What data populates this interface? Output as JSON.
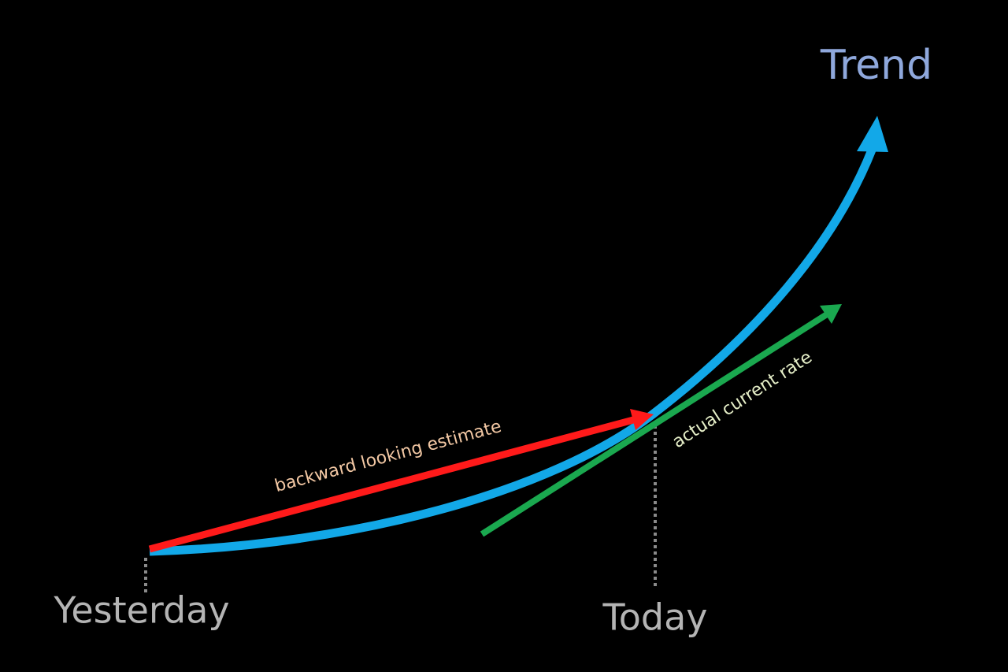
{
  "title": "Trend",
  "labels": {
    "backward": "backward looking estimate",
    "actual": "actual current rate"
  },
  "axis": {
    "start": "Yesterday",
    "end": "Today"
  }
}
